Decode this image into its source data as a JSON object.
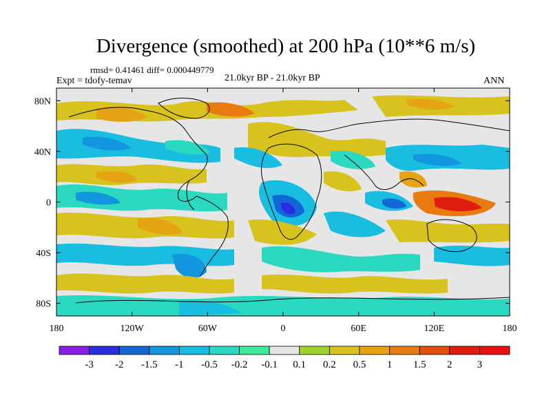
{
  "header": {
    "title": "Divergence (smoothed) at 200 hPa (10**6 m/s)",
    "stats": "rmsd= 0.41461 diff= 0.000449779",
    "experiment": "Expt = tdofy-temav",
    "period": "21.0kyr BP - 21.0kyr BP",
    "season": "ANN"
  },
  "map": {
    "lon_ticks": [
      "180",
      "120W",
      "60W",
      "0",
      "60E",
      "120E",
      "180"
    ],
    "lat_ticks": [
      "80N",
      "40N",
      "0",
      "40S",
      "80S"
    ],
    "lon_values": [
      -180,
      -120,
      -60,
      0,
      60,
      120,
      180
    ],
    "lat_values": [
      80,
      40,
      0,
      -40,
      -80
    ]
  },
  "colorbar": {
    "labels": [
      "-3",
      "-2",
      "-1.5",
      "-1",
      "-0.5",
      "-0.2",
      "-0.1",
      "0.1",
      "0.2",
      "0.5",
      "1",
      "1.5",
      "2",
      "3"
    ],
    "colors": [
      "#8a1fe6",
      "#2a2ee0",
      "#1266d6",
      "#1296de",
      "#18bde0",
      "#2bd8c0",
      "#3ee89a",
      "#e6e6e6",
      "#9ed42a",
      "#d8c21e",
      "#e4a414",
      "#e87a10",
      "#e44e0c",
      "#e01e10",
      "#e81010"
    ]
  }
}
